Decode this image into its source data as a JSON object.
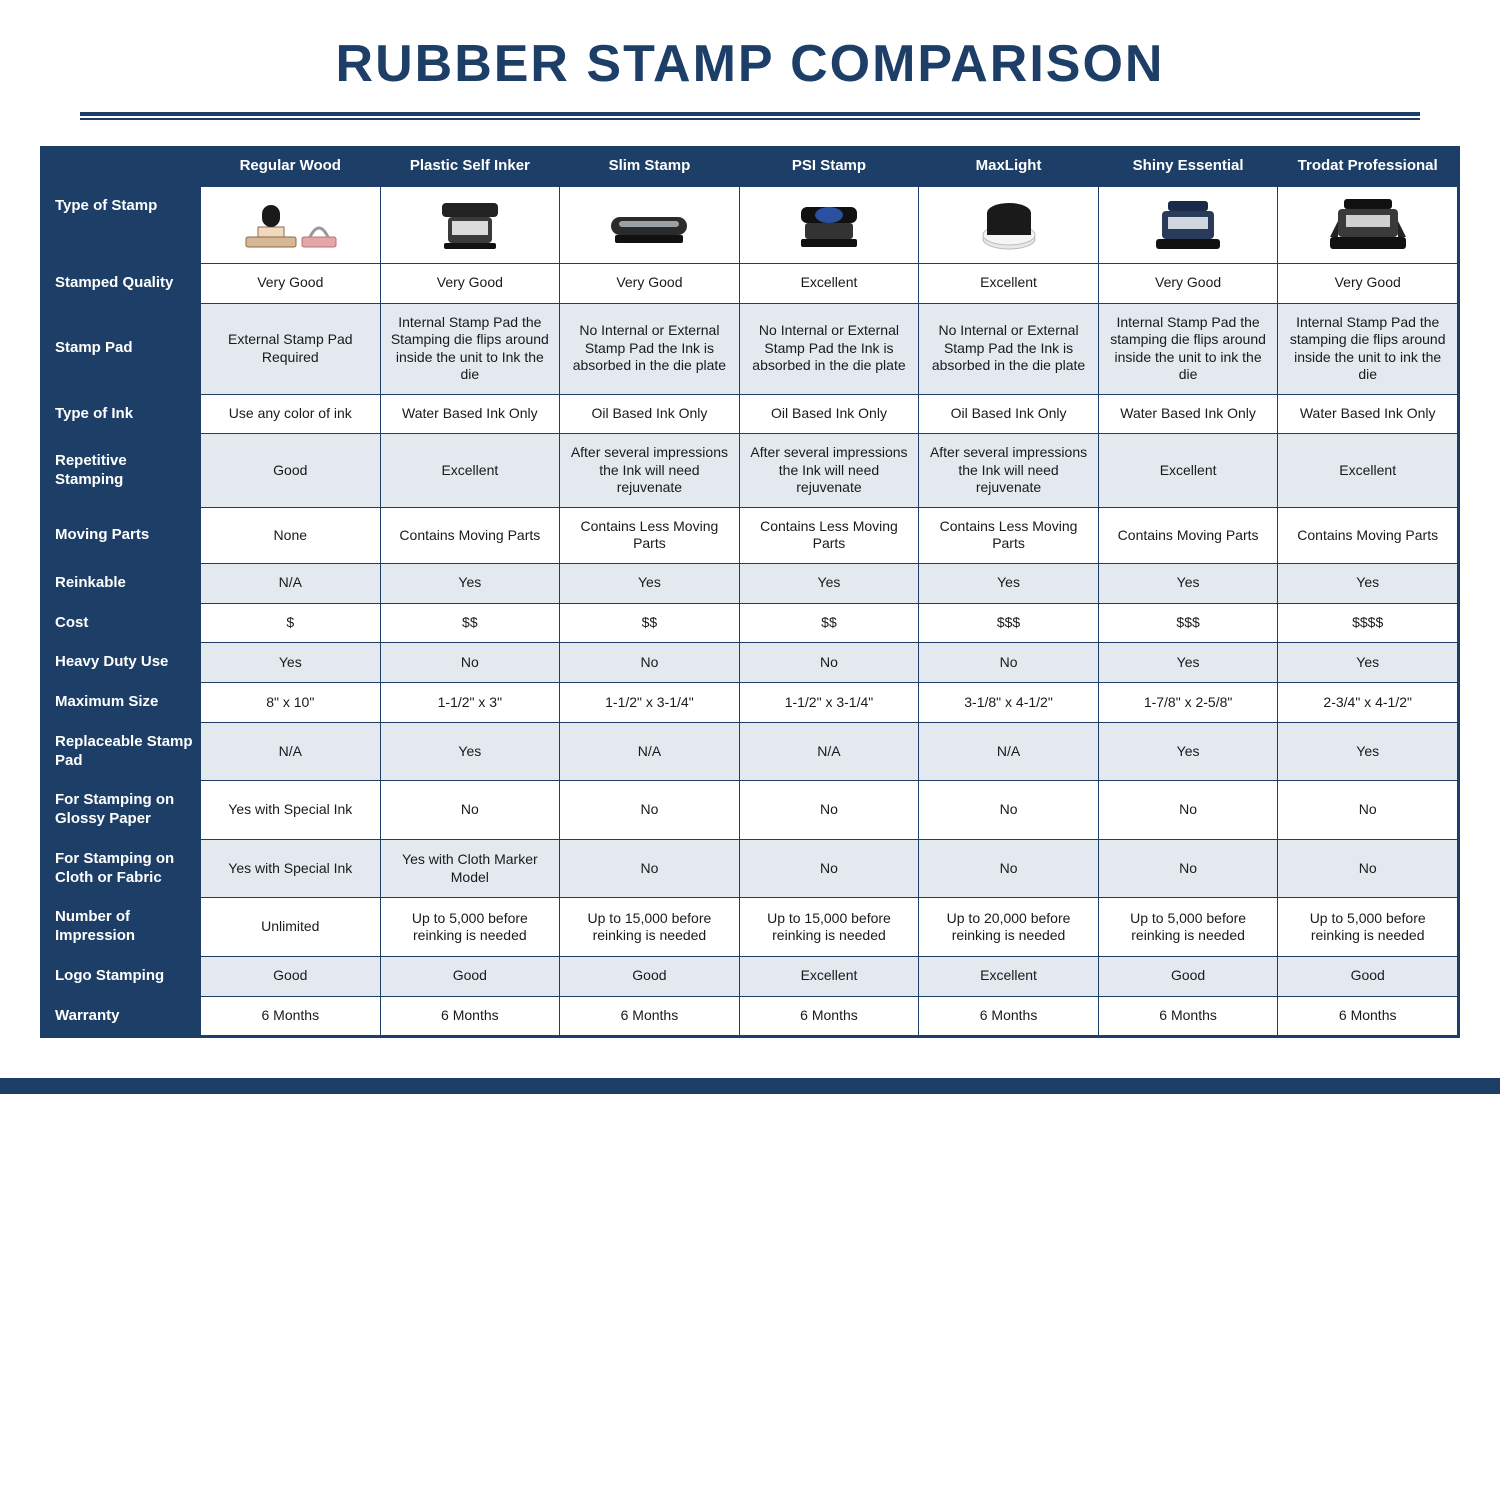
{
  "title": "RUBBER STAMP COMPARISON",
  "colors": {
    "navy": "#1d3e66",
    "light": "#e3e9ef",
    "white": "#ffffff"
  },
  "columns": [
    "Regular Wood",
    "Plastic Self Inker",
    "Slim Stamp",
    "PSI Stamp",
    "MaxLight",
    "Shiny Essential",
    "Trodat Professional"
  ],
  "cornerLabel": "Type of Stamp",
  "rows": [
    {
      "label": "Stamped Quality",
      "alt": false,
      "cells": [
        "Very Good",
        "Very Good",
        "Very Good",
        "Excellent",
        "Excellent",
        "Very Good",
        "Very Good"
      ]
    },
    {
      "label": "Stamp Pad",
      "alt": true,
      "cells": [
        "External Stamp Pad Required",
        "Internal Stamp Pad the Stamping die flips around inside the unit to Ink the die",
        "No Internal or External Stamp Pad the Ink is absorbed in the die plate",
        "No Internal or External Stamp Pad the Ink is absorbed in the die plate",
        "No Internal or External Stamp Pad the Ink is absorbed in the die plate",
        "Internal Stamp Pad the stamping die flips around inside the unit to ink the die",
        "Internal Stamp Pad the stamping die flips around inside the unit to ink the die"
      ]
    },
    {
      "label": "Type of Ink",
      "alt": false,
      "cells": [
        "Use any color of ink",
        "Water Based Ink Only",
        "Oil Based Ink Only",
        "Oil Based Ink Only",
        "Oil Based Ink Only",
        "Water Based Ink Only",
        "Water Based Ink Only"
      ]
    },
    {
      "label": "Repetitive Stamping",
      "alt": true,
      "cells": [
        "Good",
        "Excellent",
        "After several impressions the Ink will need rejuvenate",
        "After several impressions the Ink will need rejuvenate",
        "After several impressions the Ink will need rejuvenate",
        "Excellent",
        "Excellent"
      ]
    },
    {
      "label": "Moving Parts",
      "alt": false,
      "cells": [
        "None",
        "Contains Moving Parts",
        "Contains Less Moving Parts",
        "Contains Less Moving Parts",
        "Contains Less Moving Parts",
        "Contains Moving Parts",
        "Contains Moving Parts"
      ]
    },
    {
      "label": "Reinkable",
      "alt": true,
      "cells": [
        "N/A",
        "Yes",
        "Yes",
        "Yes",
        "Yes",
        "Yes",
        "Yes"
      ]
    },
    {
      "label": "Cost",
      "alt": false,
      "cells": [
        "$",
        "$$",
        "$$",
        "$$",
        "$$$",
        "$$$",
        "$$$$"
      ]
    },
    {
      "label": "Heavy Duty Use",
      "alt": true,
      "cells": [
        "Yes",
        "No",
        "No",
        "No",
        "No",
        "Yes",
        "Yes"
      ]
    },
    {
      "label": "Maximum Size",
      "alt": false,
      "cells": [
        "8\" x 10\"",
        "1-1/2\" x 3\"",
        "1-1/2\" x 3-1/4\"",
        "1-1/2\" x 3-1/4\"",
        "3-1/8\" x 4-1/2\"",
        "1-7/8\" x 2-5/8\"",
        "2-3/4\" x 4-1/2\""
      ]
    },
    {
      "label": "Replaceable Stamp Pad",
      "alt": true,
      "cells": [
        "N/A",
        "Yes",
        "N/A",
        "N/A",
        "N/A",
        "Yes",
        "Yes"
      ]
    },
    {
      "label": "For Stamping on Glossy Paper",
      "alt": false,
      "cells": [
        "Yes with Special Ink",
        "No",
        "No",
        "No",
        "No",
        "No",
        "No"
      ]
    },
    {
      "label": "For Stamping on Cloth or Fabric",
      "alt": true,
      "cells": [
        "Yes with Special Ink",
        "Yes with Cloth Marker Model",
        "No",
        "No",
        "No",
        "No",
        "No"
      ]
    },
    {
      "label": "Number of Impression",
      "alt": false,
      "cells": [
        "Unlimited",
        "Up to 5,000 before reinking is needed",
        "Up to 15,000 before reinking is needed",
        "Up to 15,000 before reinking is needed",
        "Up to 20,000 before reinking is needed",
        "Up to 5,000 before reinking is needed",
        "Up to 5,000 before reinking is needed"
      ]
    },
    {
      "label": "Logo Stamping",
      "alt": true,
      "cells": [
        "Good",
        "Good",
        "Good",
        "Excellent",
        "Excellent",
        "Good",
        "Good"
      ]
    },
    {
      "label": "Warranty",
      "alt": false,
      "cells": [
        "6 Months",
        "6 Months",
        "6 Months",
        "6 Months",
        "6 Months",
        "6 Months",
        "6 Months"
      ]
    }
  ],
  "stampIcons": [
    "wood",
    "self-inker",
    "slim",
    "psi",
    "maxlight",
    "shiny",
    "trodat"
  ]
}
